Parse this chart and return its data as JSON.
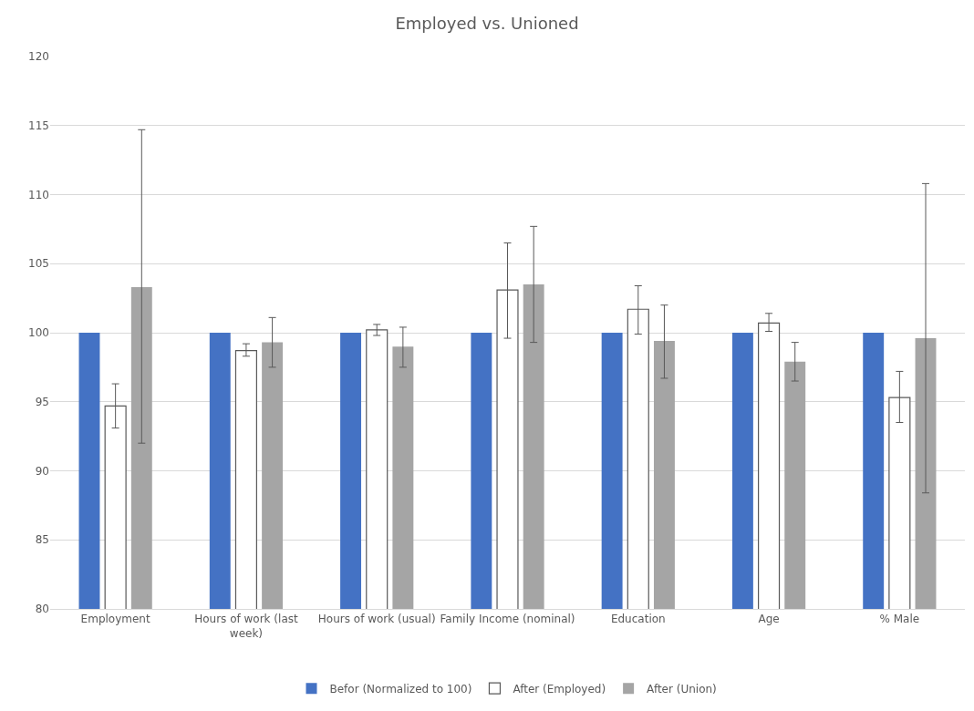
{
  "chart_data": {
    "type": "bar",
    "title": "Employed vs. Unioned",
    "categories": [
      "Employment",
      "Hours of work (last week)",
      "Hours of work (usual)",
      "Family Income (nominal)",
      "Education",
      "Age",
      "% Male"
    ],
    "series": [
      {
        "name": "Befor (Normalized to 100)",
        "color": "#4472c4",
        "values": [
          100,
          100,
          100,
          100,
          100,
          100,
          100
        ]
      },
      {
        "name": "After (Employed)",
        "color": "#ffffff",
        "values": [
          94.7,
          98.7,
          100.2,
          103.1,
          101.7,
          100.7,
          95.3
        ],
        "errors": [
          [
            93.1,
            96.3
          ],
          [
            98.3,
            99.2
          ],
          [
            99.8,
            100.6
          ],
          [
            99.6,
            106.5
          ],
          [
            99.9,
            103.4
          ],
          [
            100.1,
            101.4
          ],
          [
            93.5,
            97.2
          ]
        ]
      },
      {
        "name": "After (Union)",
        "color": "#a5a5a5",
        "values": [
          103.3,
          99.3,
          99.0,
          103.5,
          99.4,
          97.9,
          99.6
        ],
        "errors": [
          [
            92.0,
            114.7
          ],
          [
            97.5,
            101.1
          ],
          [
            97.5,
            100.4
          ],
          [
            99.3,
            107.7
          ],
          [
            96.7,
            102.0
          ],
          [
            96.5,
            99.3
          ],
          [
            88.4,
            110.8
          ]
        ]
      }
    ],
    "ylim": [
      80,
      120
    ],
    "yticks": [
      80,
      85,
      90,
      95,
      100,
      105,
      110,
      115,
      120
    ],
    "grid": "y",
    "legend": "bottom"
  }
}
